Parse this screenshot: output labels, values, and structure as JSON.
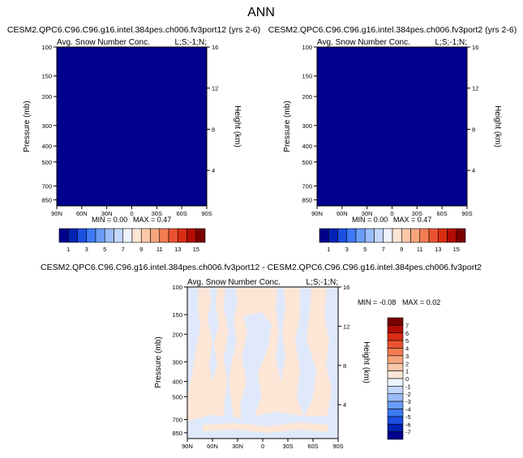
{
  "page_title": "ANN",
  "colors": {
    "field_dark": "#00008c",
    "diff_zero_cream": "#fde6d6",
    "diff_neg_light": "#dfe9fb"
  },
  "chart_data": [
    {
      "type": "heatmap",
      "title": "CESM2.QPC6.C96.C96.g16.intel.384pes.ch006.fv3port12 (yrs 2-6)",
      "subtitle_left": "Avg. Snow Number Conc.",
      "subtitle_right": "L;S;-1;N;",
      "xlabel": "",
      "ylabel": "Pressure (mb)",
      "ylabel_right": "Height (km)",
      "x_ticks": [
        "90N",
        "60N",
        "30N",
        "0",
        "30S",
        "60S",
        "90S"
      ],
      "y_ticks": [
        "100",
        "150",
        "200",
        "300",
        "400",
        "500",
        "700",
        "850"
      ],
      "y_right_ticks": [
        "16",
        "12",
        "8",
        "4"
      ],
      "ylim": [
        100,
        1000
      ],
      "y_scale": "log",
      "min_label": "MIN =  0.00",
      "max_label": "MAX =  0.47",
      "min": 0.0,
      "max": 0.47,
      "colorbar": {
        "orientation": "horizontal",
        "labels": [
          "1",
          "3",
          "5",
          "7",
          "9",
          "11",
          "13",
          "15"
        ],
        "colors": [
          "#00008c",
          "#0022b4",
          "#1a4fe0",
          "#3d79f4",
          "#6a9bf7",
          "#9abcf9",
          "#c4d8fb",
          "#eef3fd",
          "#fde6d6",
          "#fbc8a9",
          "#f8a57c",
          "#f47c52",
          "#eb5330",
          "#d92d12",
          "#b30c04",
          "#7a0000"
        ]
      }
    },
    {
      "type": "heatmap",
      "title": "CESM2.QPC6.C96.C96.g16.intel.384pes.ch006.fv3port2 (yrs 2-6)",
      "subtitle_left": "Avg. Snow Number Conc.",
      "subtitle_right": "L;S;-1;N;",
      "xlabel": "",
      "ylabel": "Pressure (mb)",
      "ylabel_right": "Height (km)",
      "x_ticks": [
        "90N",
        "60N",
        "30N",
        "0",
        "30S",
        "60S",
        "90S"
      ],
      "y_ticks": [
        "100",
        "150",
        "200",
        "300",
        "400",
        "500",
        "700",
        "850"
      ],
      "y_right_ticks": [
        "16",
        "12",
        "8",
        "4"
      ],
      "ylim": [
        100,
        1000
      ],
      "y_scale": "log",
      "min_label": "MIN =  0.00",
      "max_label": "MAX =  0.47",
      "min": 0.0,
      "max": 0.47,
      "colorbar": {
        "orientation": "horizontal",
        "labels": [
          "1",
          "3",
          "5",
          "7",
          "9",
          "11",
          "13",
          "15"
        ],
        "colors": [
          "#00008c",
          "#0022b4",
          "#1a4fe0",
          "#3d79f4",
          "#6a9bf7",
          "#9abcf9",
          "#c4d8fb",
          "#eef3fd",
          "#fde6d6",
          "#fbc8a9",
          "#f8a57c",
          "#f47c52",
          "#eb5330",
          "#d92d12",
          "#b30c04",
          "#7a0000"
        ]
      }
    },
    {
      "type": "heatmap",
      "title": "CESM2.QPC6.C96.C96.g16.intel.384pes.ch006.fv3port12 - CESM2.QPC6.C96.C96.g16.intel.384pes.ch006.fv3port2",
      "subtitle_left": "Avg. Snow Number Conc.",
      "subtitle_right": "L;S;-1;N;",
      "xlabel": "",
      "ylabel": "Pressure (mb)",
      "ylabel_right": "Height (km)",
      "x_ticks": [
        "90N",
        "60N",
        "30N",
        "0",
        "30S",
        "60S",
        "90S"
      ],
      "y_ticks": [
        "100",
        "150",
        "200",
        "300",
        "400",
        "500",
        "700",
        "850"
      ],
      "y_right_ticks": [
        "16",
        "12",
        "8",
        "4"
      ],
      "ylim": [
        100,
        1000
      ],
      "y_scale": "log",
      "min_label": "MIN = -0.08",
      "max_label": "MAX =  0.02",
      "min": -0.08,
      "max": 0.02,
      "colorbar": {
        "orientation": "vertical",
        "labels": [
          "7",
          "6",
          "5",
          "4",
          "3",
          "2",
          "1",
          "0",
          "-1",
          "-2",
          "-3",
          "-4",
          "-5",
          "-6",
          "-7"
        ],
        "colors": [
          "#7a0000",
          "#b30c04",
          "#d92d12",
          "#eb5330",
          "#f47c52",
          "#f8a57c",
          "#fbc8a9",
          "#fde6d6",
          "#eef3fd",
          "#c4d8fb",
          "#9abcf9",
          "#6a9bf7",
          "#3d79f4",
          "#1a4fe0",
          "#0022b4",
          "#00008c"
        ]
      }
    }
  ]
}
